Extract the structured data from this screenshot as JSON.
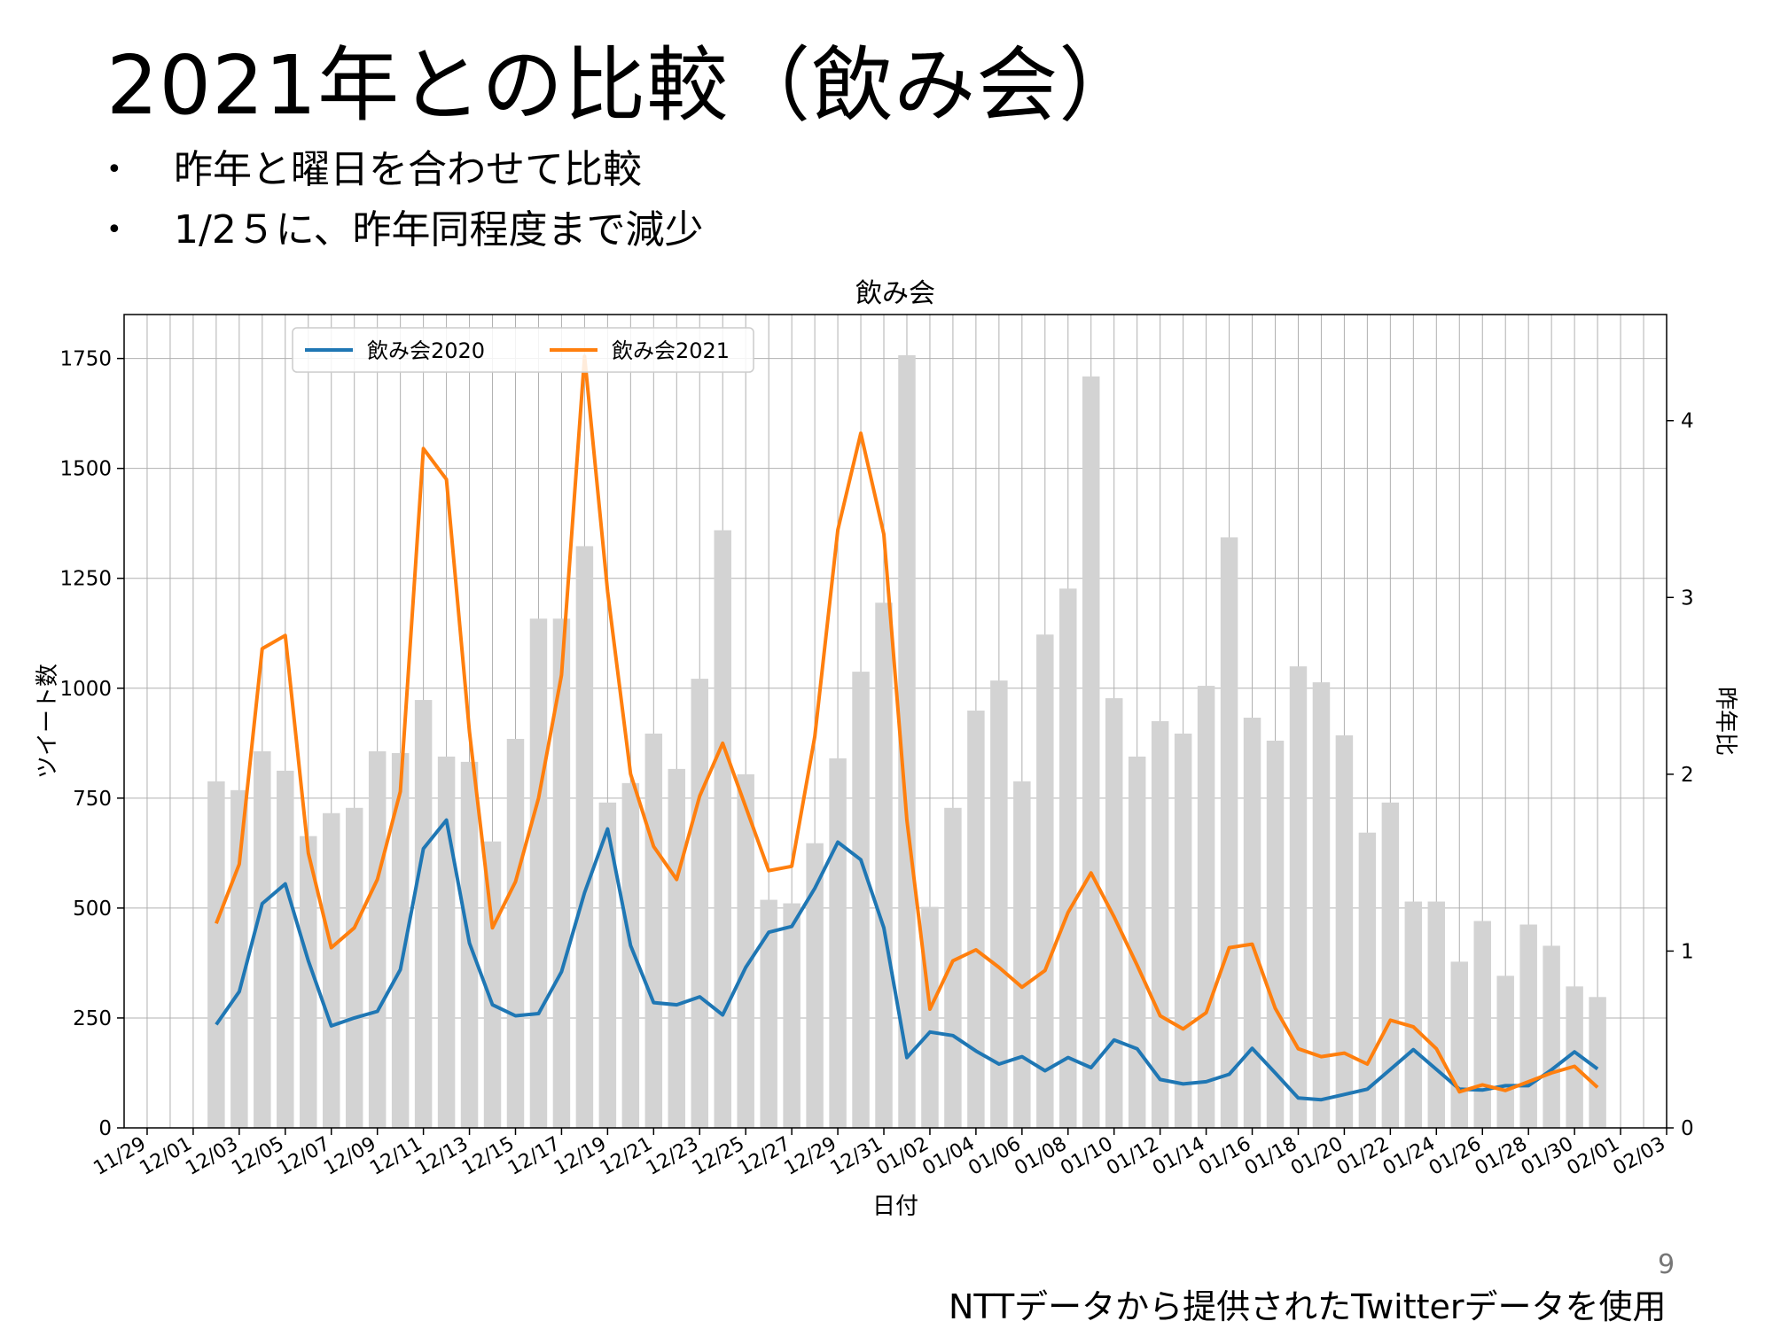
{
  "slide": {
    "title": "2021年との比較（飲み会）",
    "bullets": [
      "昨年と曜日を合わせて比較",
      "1/2５に、昨年同程度まで減少"
    ],
    "bullet_glyph": "•",
    "page_number": "9",
    "footer": "NTTデータから提供されたTwitterデータを使用"
  },
  "chart_data": {
    "type": "bar+line",
    "title": "飲み会",
    "xlabel": "日付",
    "ylabel_left": "ツイート数",
    "ylabel_right": "昨年比",
    "ylim_left": [
      0,
      1850
    ],
    "ylim_right": [
      0,
      4.6
    ],
    "yticks_left": [
      0,
      250,
      500,
      750,
      1000,
      1250,
      1500,
      1750
    ],
    "yticks_right": [
      0,
      1,
      2,
      3,
      4
    ],
    "x_tick_labels": [
      "11/29",
      "12/01",
      "12/03",
      "12/05",
      "12/07",
      "12/09",
      "12/11",
      "12/13",
      "12/15",
      "12/17",
      "12/19",
      "12/21",
      "12/23",
      "12/25",
      "12/27",
      "12/29",
      "12/31",
      "01/02",
      "01/04",
      "01/06",
      "01/08",
      "01/10",
      "01/12",
      "01/14",
      "01/16",
      "01/18",
      "01/20",
      "01/22",
      "01/24",
      "01/26",
      "01/28",
      "01/30",
      "02/01",
      "02/03"
    ],
    "x_range_days": [
      -1,
      66
    ],
    "first_data_day_index": 3,
    "grid": true,
    "legend_position": "top-left",
    "colors": {
      "bar": "#d3d3d3",
      "series_2020": "#1f77b4",
      "series_2021": "#ff7f0e",
      "grid": "#b0b0b0"
    },
    "bars_right_axis_ratio": [
      1.96,
      1.91,
      2.13,
      2.02,
      1.65,
      1.78,
      1.81,
      2.13,
      2.12,
      2.42,
      2.1,
      2.07,
      1.62,
      2.2,
      2.88,
      2.88,
      3.29,
      1.84,
      1.95,
      2.23,
      2.03,
      2.54,
      3.38,
      2.0,
      1.29,
      1.27,
      1.61,
      2.09,
      2.58,
      2.97,
      4.37,
      1.25,
      1.81,
      2.36,
      2.53,
      1.96,
      2.79,
      3.05,
      4.25,
      2.43,
      2.1,
      2.3,
      2.23,
      2.5,
      3.34,
      2.32,
      2.19,
      2.61,
      2.52,
      2.22,
      1.67,
      1.84,
      1.28,
      1.28,
      0.94,
      1.17,
      0.86,
      1.15,
      1.03,
      0.8,
      0.74
    ],
    "series": [
      {
        "name": "飲み会2020",
        "values": [
          235,
          310,
          510,
          555,
          380,
          232,
          250,
          265,
          360,
          635,
          700,
          420,
          280,
          255,
          260,
          355,
          535,
          680,
          415,
          285,
          280,
          298,
          257,
          365,
          445,
          458,
          545,
          650,
          610,
          455,
          160,
          218,
          210,
          175,
          145,
          162,
          130,
          160,
          137,
          200,
          180,
          110,
          100,
          105,
          122,
          181,
          125,
          68,
          64,
          76,
          88,
          133,
          178,
          133,
          88,
          86,
          96,
          96,
          132,
          173,
          134
        ]
      },
      {
        "name": "飲み会2021",
        "values": [
          465,
          600,
          1090,
          1120,
          625,
          410,
          455,
          565,
          765,
          1545,
          1475,
          900,
          455,
          560,
          750,
          1030,
          1755,
          1220,
          805,
          640,
          565,
          755,
          875,
          730,
          585,
          595,
          890,
          1360,
          1580,
          1350,
          700,
          270,
          380,
          405,
          365,
          320,
          358,
          490,
          580,
          480,
          370,
          255,
          225,
          262,
          410,
          418,
          272,
          180,
          162,
          170,
          145,
          245,
          230,
          180,
          82,
          98,
          85,
          105,
          125,
          140,
          92
        ]
      }
    ]
  }
}
